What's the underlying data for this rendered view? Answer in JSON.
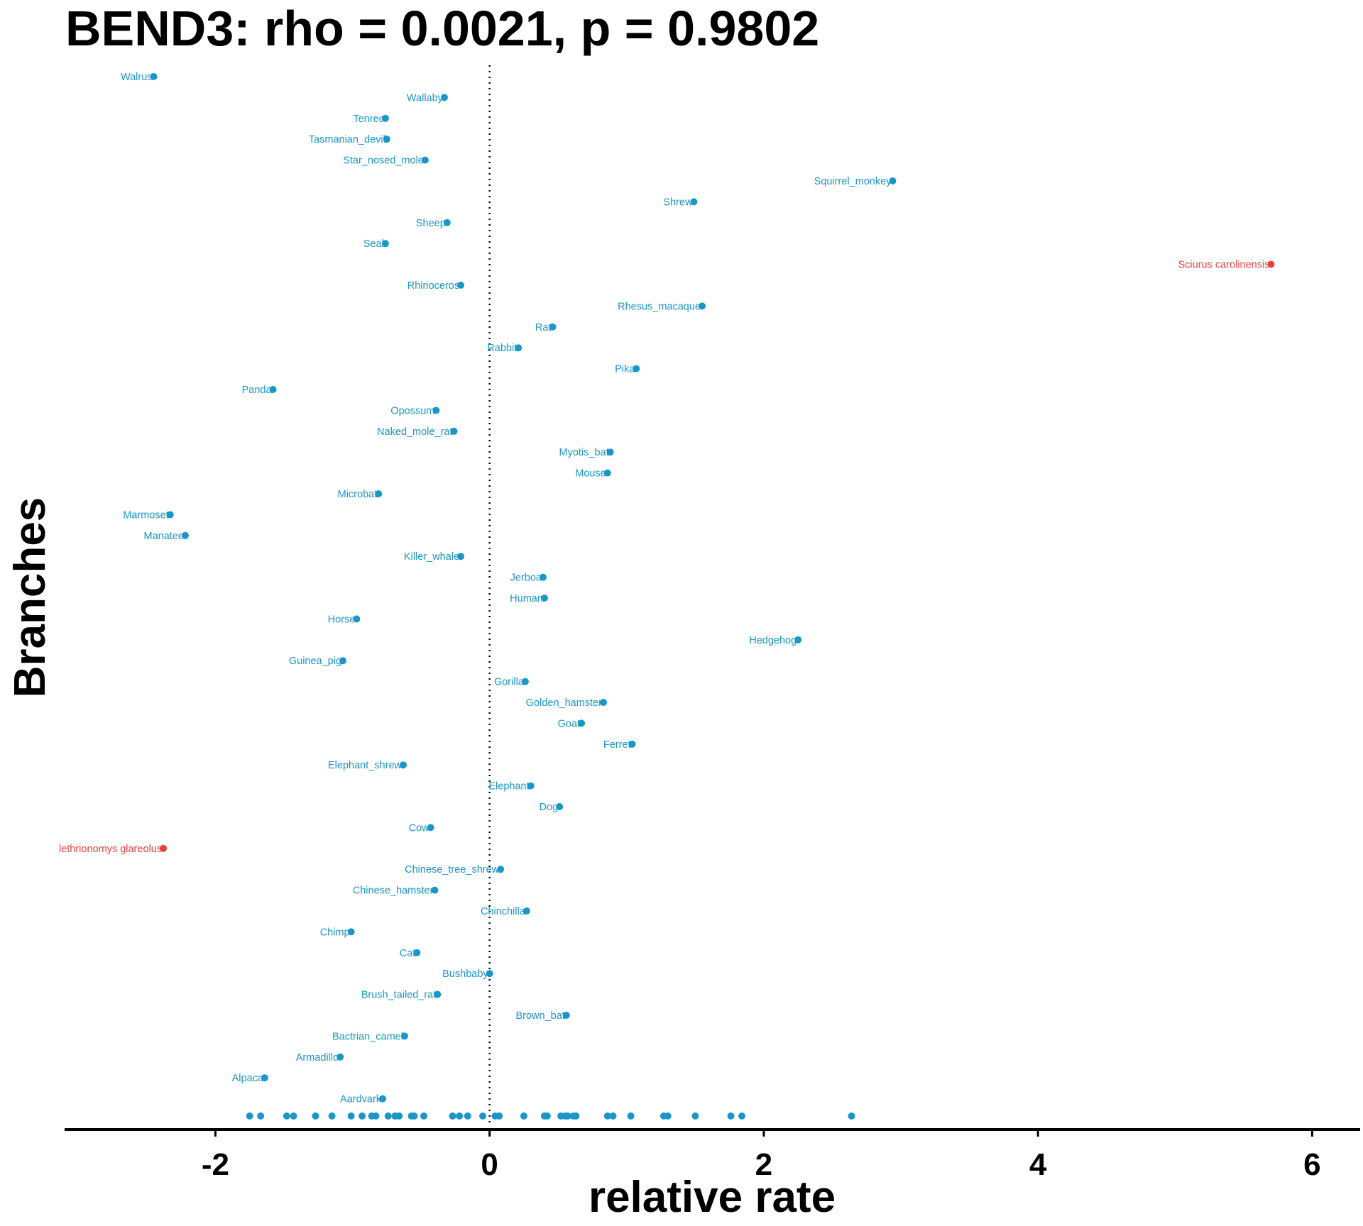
{
  "colors": {
    "normal": "#1a96c8",
    "highlight": "#e8413a"
  },
  "chart_data": {
    "type": "scatter",
    "title": "BEND3: rho = 0.0021, p = 0.9802",
    "xlabel": "relative rate",
    "ylabel": "Branches",
    "xlim": [
      -3.1,
      6.35
    ],
    "xticks": [
      -2,
      0,
      2,
      4,
      6
    ],
    "xtick_labels": [
      "-2",
      "0",
      "2",
      "4",
      "6"
    ],
    "reference_line_x": 0,
    "grid": false,
    "points": [
      {
        "label": "Walrus",
        "x": -2.45,
        "highlight": false
      },
      {
        "label": "Wallaby",
        "x": -0.33,
        "highlight": false
      },
      {
        "label": "Tenrec",
        "x": -0.76,
        "highlight": false
      },
      {
        "label": "Tasmanian_devil",
        "x": -0.75,
        "highlight": false
      },
      {
        "label": "Star_nosed_mole",
        "x": -0.47,
        "highlight": false
      },
      {
        "label": "Squirrel_monkey",
        "x": 2.94,
        "highlight": false
      },
      {
        "label": "Shrew",
        "x": 1.49,
        "highlight": false
      },
      {
        "label": "Sheep",
        "x": -0.31,
        "highlight": false
      },
      {
        "label": "Seal",
        "x": -0.76,
        "highlight": false
      },
      {
        "label": "Sciurus carolinensis",
        "x": 5.7,
        "highlight": true
      },
      {
        "label": "Rhinoceros",
        "x": -0.21,
        "highlight": false
      },
      {
        "label": "Rhesus_macaque",
        "x": 1.55,
        "highlight": false
      },
      {
        "label": "Rat",
        "x": 0.46,
        "highlight": false
      },
      {
        "label": "Rabbit",
        "x": 0.21,
        "highlight": false
      },
      {
        "label": "Pika",
        "x": 1.07,
        "highlight": false
      },
      {
        "label": "Panda",
        "x": -1.58,
        "highlight": false
      },
      {
        "label": "Opossum",
        "x": -0.39,
        "highlight": false
      },
      {
        "label": "Naked_mole_rat",
        "x": -0.26,
        "highlight": false
      },
      {
        "label": "Myotis_bat",
        "x": 0.88,
        "highlight": false
      },
      {
        "label": "Mouse",
        "x": 0.86,
        "highlight": false
      },
      {
        "label": "Microbat",
        "x": -0.81,
        "highlight": false
      },
      {
        "label": "Marmoset",
        "x": -2.33,
        "highlight": false
      },
      {
        "label": "Manatee",
        "x": -2.22,
        "highlight": false
      },
      {
        "label": "Killer_whale",
        "x": -0.21,
        "highlight": false
      },
      {
        "label": "Jerboa",
        "x": 0.39,
        "highlight": false
      },
      {
        "label": "Human",
        "x": 0.4,
        "highlight": false
      },
      {
        "label": "Horse",
        "x": -0.97,
        "highlight": false
      },
      {
        "label": "Hedgehog",
        "x": 2.25,
        "highlight": false
      },
      {
        "label": "Guinea_pig",
        "x": -1.07,
        "highlight": false
      },
      {
        "label": "Gorilla",
        "x": 0.26,
        "highlight": false
      },
      {
        "label": "Golden_hamster",
        "x": 0.83,
        "highlight": false
      },
      {
        "label": "Goat",
        "x": 0.67,
        "highlight": false
      },
      {
        "label": "Ferret",
        "x": 1.04,
        "highlight": false
      },
      {
        "label": "Elephant_shrew",
        "x": -0.63,
        "highlight": false
      },
      {
        "label": "Elephant",
        "x": 0.3,
        "highlight": false
      },
      {
        "label": "Dog",
        "x": 0.51,
        "highlight": false
      },
      {
        "label": "Cow",
        "x": -0.43,
        "highlight": false
      },
      {
        "label": "lethrionomys glareolus",
        "x": -2.38,
        "highlight": true
      },
      {
        "label": "Chinese_tree_shrew",
        "x": 0.08,
        "highlight": false
      },
      {
        "label": "Chinese_hamster",
        "x": -0.4,
        "highlight": false
      },
      {
        "label": "Chinchilla",
        "x": 0.27,
        "highlight": false
      },
      {
        "label": "Chimp",
        "x": -1.01,
        "highlight": false
      },
      {
        "label": "Cat",
        "x": -0.53,
        "highlight": false
      },
      {
        "label": "Bushbaby",
        "x": 0.0,
        "highlight": false
      },
      {
        "label": "Brush_tailed_rat",
        "x": -0.38,
        "highlight": false
      },
      {
        "label": "Brown_bat",
        "x": 0.56,
        "highlight": false
      },
      {
        "label": "Bactrian_camel",
        "x": -0.62,
        "highlight": false
      },
      {
        "label": "Armadillo",
        "x": -1.09,
        "highlight": false
      },
      {
        "label": "Alpaca",
        "x": -1.64,
        "highlight": false
      },
      {
        "label": "Aardvark",
        "x": -0.78,
        "highlight": false
      }
    ],
    "rug_x": [
      -1.75,
      -1.67,
      -1.48,
      -1.43,
      -1.27,
      -1.15,
      -1.01,
      -0.93,
      -0.86,
      -0.83,
      -0.74,
      -0.69,
      -0.66,
      -0.57,
      -0.55,
      -0.48,
      -0.27,
      -0.22,
      -0.16,
      -0.05,
      0.04,
      0.07,
      0.25,
      0.4,
      0.42,
      0.52,
      0.55,
      0.57,
      0.61,
      0.63,
      0.86,
      0.9,
      1.03,
      1.27,
      1.3,
      1.5,
      1.76,
      1.84,
      2.64
    ]
  }
}
